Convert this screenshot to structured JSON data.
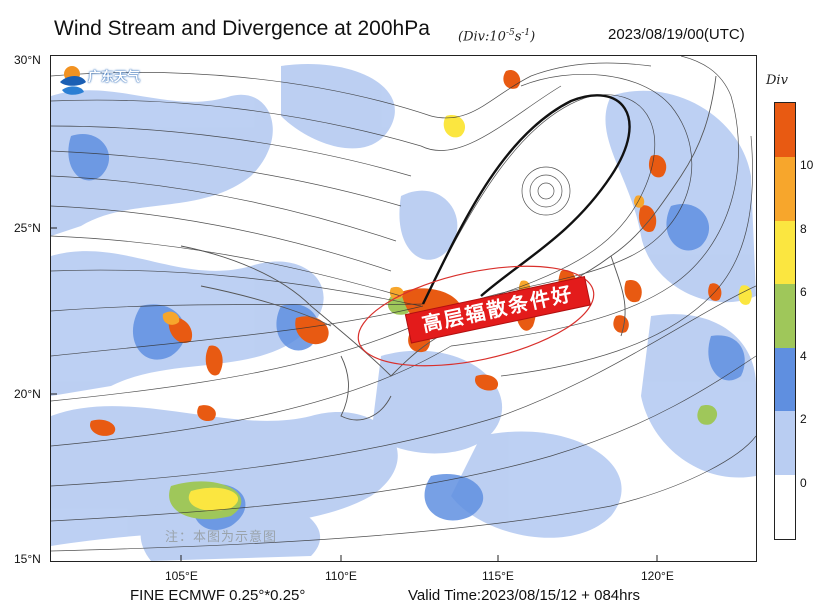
{
  "header": {
    "title": "Wind Stream and Divergence at 200hPa",
    "unit_label": "Div:10",
    "unit_exp": "-5",
    "unit_tail": "s",
    "unit_tail_exp": "-1",
    "unit_close": "",
    "datetime": "2023/08/19/00(UTC)"
  },
  "logo": {
    "text": "广东天气"
  },
  "axes": {
    "lat_labels": [
      "30°N",
      "25°N",
      "20°N",
      "15°N"
    ],
    "lon_labels": [
      "105°E",
      "110°E",
      "115°E",
      "120°E"
    ]
  },
  "colorbar": {
    "title": "Div",
    "ticks": [
      "10",
      "8",
      "6",
      "4",
      "2",
      "0"
    ],
    "levels": [
      {
        "value": "top",
        "color": "#e85a12"
      },
      {
        "value": "10",
        "color": "#f7a62c"
      },
      {
        "value": "8",
        "color": "#fbe640"
      },
      {
        "value": "6",
        "color": "#9fc75a"
      },
      {
        "value": "4",
        "color": "#5f8fe0"
      },
      {
        "value": "2",
        "color": "#b9cdf2"
      },
      {
        "value": "0",
        "color": "#ffffff"
      }
    ]
  },
  "annotation": {
    "banner": "高层辐散条件好",
    "note": "注：本图为示意图"
  },
  "footer": {
    "model": "FINE ECMWF 0.25°*0.25°",
    "valid": "Valid Time:2023/08/15/12 + 084hrs"
  }
}
